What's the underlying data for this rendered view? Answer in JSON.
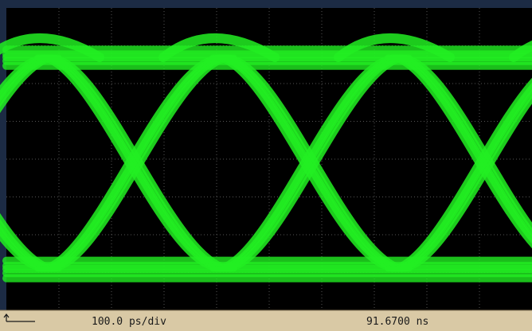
{
  "status_bar": {
    "timebase": "100.0 ps/div",
    "position": "91.6700 ns"
  }
}
